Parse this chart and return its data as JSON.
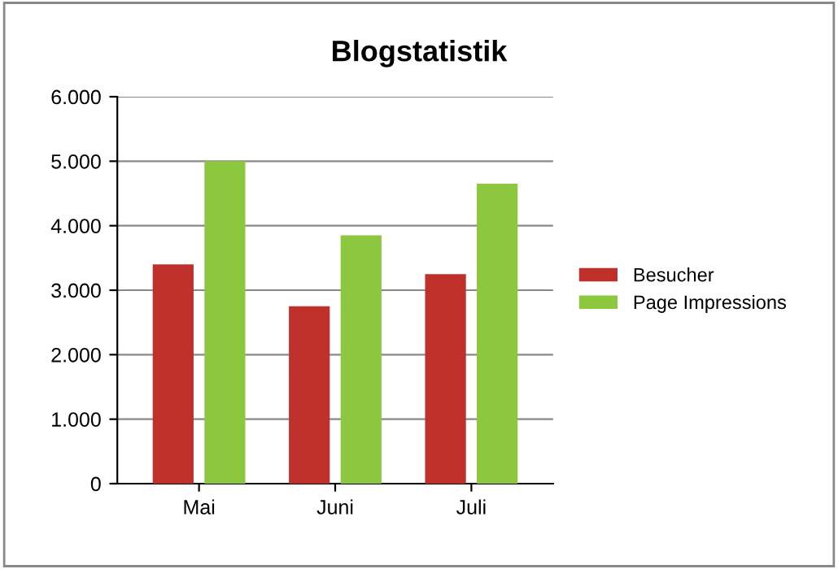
{
  "chart_data": {
    "type": "bar",
    "title": "Blogstatistik",
    "categories": [
      "Mai",
      "Juni",
      "Juli"
    ],
    "series": [
      {
        "name": "Besucher",
        "color": "#c0302b",
        "values": [
          3400,
          2750,
          3250
        ]
      },
      {
        "name": "Page Impressions",
        "color": "#8dc63f",
        "values": [
          5000,
          3850,
          4650
        ]
      }
    ],
    "ylim": [
      0,
      6000
    ],
    "yticks": [
      {
        "value": 0,
        "label": "0"
      },
      {
        "value": 1000,
        "label": "1.000"
      },
      {
        "value": 2000,
        "label": "2.000"
      },
      {
        "value": 3000,
        "label": "3.000"
      },
      {
        "value": 4000,
        "label": "4.000"
      },
      {
        "value": 5000,
        "label": "5.000"
      },
      {
        "value": 6000,
        "label": "6.000"
      }
    ],
    "grid": "y",
    "legend": "right"
  }
}
